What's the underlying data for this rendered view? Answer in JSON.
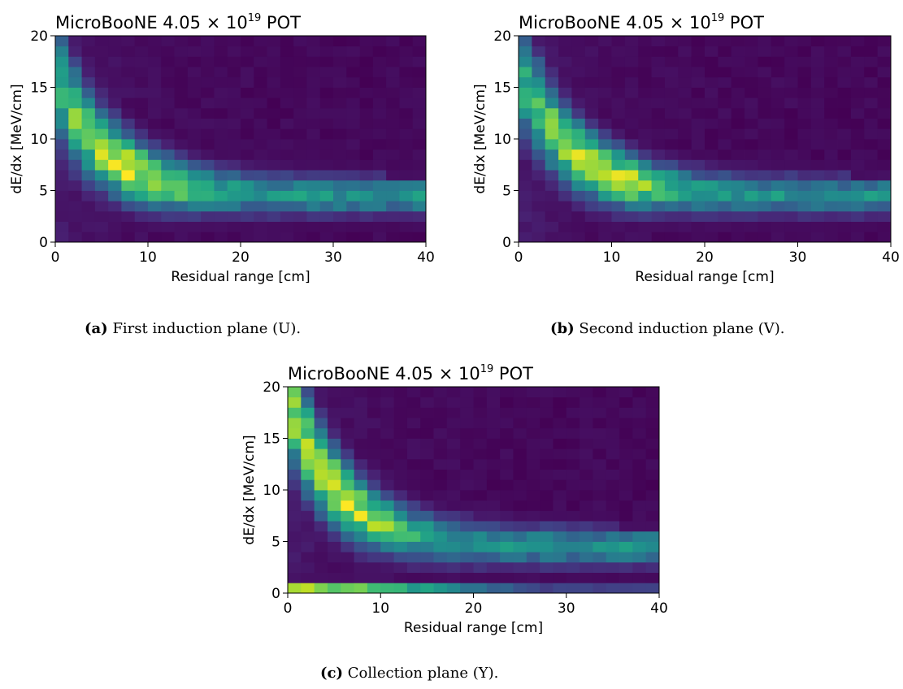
{
  "chart_data": [
    {
      "type": "heatmap",
      "title_prefix": "MicroBooNE 4.05",
      "title_times": "×",
      "title_base": "10",
      "title_exp": "19",
      "title_suffix": "POT",
      "xlabel": "Residual range [cm]",
      "ylabel": "dE/dx [MeV/cm]",
      "xlim": [
        0,
        40
      ],
      "ylim": [
        0,
        20
      ],
      "xticks": [
        0,
        10,
        20,
        30,
        40
      ],
      "yticks": [
        0,
        5,
        10,
        15,
        20
      ],
      "bins": {
        "x": 28,
        "y": 20
      },
      "colormap": "viridis",
      "band_shape": "bragg-peak",
      "band_peak_value": 8,
      "band_plateau_value": 4.5,
      "peak_residual_range": 6,
      "plane": "U"
    },
    {
      "type": "heatmap",
      "title_prefix": "MicroBooNE 4.05",
      "title_times": "×",
      "title_base": "10",
      "title_exp": "19",
      "title_suffix": "POT",
      "xlabel": "Residual range [cm]",
      "ylabel": "dE/dx [MeV/cm]",
      "xlim": [
        0,
        40
      ],
      "ylim": [
        0,
        20
      ],
      "xticks": [
        0,
        10,
        20,
        30,
        40
      ],
      "yticks": [
        0,
        5,
        10,
        15,
        20
      ],
      "bins": {
        "x": 28,
        "y": 20
      },
      "colormap": "viridis",
      "band_shape": "bragg-peak",
      "band_peak_value": 9,
      "band_plateau_value": 4.5,
      "peak_residual_range": 7,
      "plane": "V"
    },
    {
      "type": "heatmap",
      "title_prefix": "MicroBooNE 4.05",
      "title_times": "×",
      "title_base": "10",
      "title_exp": "19",
      "title_suffix": "POT",
      "xlabel": "Residual range [cm]",
      "ylabel": "dE/dx [MeV/cm]",
      "xlim": [
        0,
        40
      ],
      "ylim": [
        0,
        20
      ],
      "xticks": [
        0,
        10,
        20,
        30,
        40
      ],
      "yticks": [
        0,
        5,
        10,
        15,
        20
      ],
      "bins": {
        "x": 28,
        "y": 20
      },
      "colormap": "viridis",
      "band_shape": "bragg-peak-with-low-row",
      "band_peak_value": 11,
      "band_plateau_value": 4.5,
      "peak_residual_range": 3,
      "low_row_value": 0.5,
      "plane": "Y"
    }
  ],
  "captions": [
    {
      "tag": "(a)",
      "text": "First induction plane (U)."
    },
    {
      "tag": "(b)",
      "text": "Second induction plane (V)."
    },
    {
      "tag": "(c)",
      "text": "Collection plane (Y)."
    }
  ],
  "colors": {
    "viridis_low": "#440154",
    "viridis_mid": "#21918c",
    "viridis_high": "#fde725"
  }
}
